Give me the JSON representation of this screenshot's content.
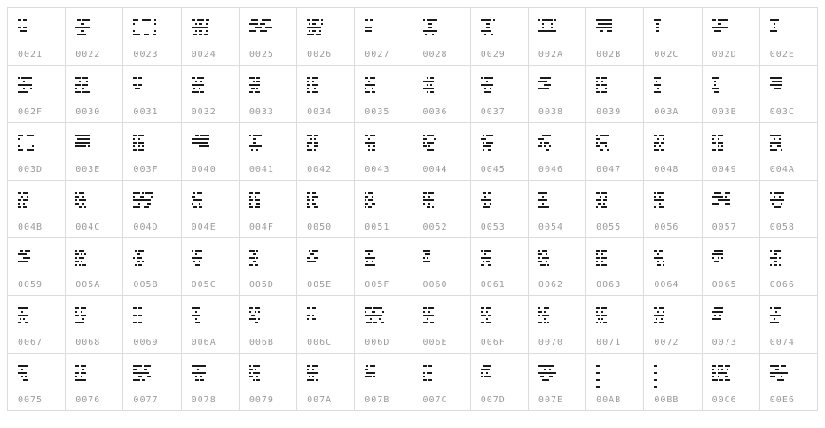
{
  "page": {
    "background": "#ffffff",
    "border_color": "#dcdcdc",
    "glyph_color": "#1b1b1b",
    "label_color": "#9a9a9a"
  },
  "grid": {
    "columns": 14,
    "rows": 7,
    "cells": [
      {
        "code": "0021",
        "bitmap": [
          "##.##",
          ".....",
          "##.##",
          ".####"
        ]
      },
      {
        "code": "0022",
        "bitmap": [
          ".##.####",
          "...##...",
          "########",
          "...##...",
          ".#####.."
        ]
      },
      {
        "code": "0023",
        "bitmap": [
          "###..#####..#",
          "#...........#",
          ".............",
          "#...........#",
          "####..###..##"
        ]
      },
      {
        "code": "0024",
        "bitmap": [
          "##.####.##",
          "..#.##..#.",
          "#########.",
          "..#.##..#.",
          ".##.##.##."
        ]
      },
      {
        "code": "0025",
        "bitmap": [
          ".####..#####.",
          "#####.###....",
          "...####..####",
          "####..####..."
        ]
      },
      {
        "code": "0026",
        "bitmap": [
          "##.####.#",
          ".#.##...#",
          "########.",
          ".#.##..#.",
          "####.###."
        ]
      },
      {
        "code": "0027",
        "bitmap": [
          "##.##",
          ".....",
          "####.",
          "####."
        ]
      },
      {
        "code": "0028",
        "bitmap": [
          "#.######",
          "...##...",
          "...##...",
          "########",
          ".#...#.."
        ]
      },
      {
        "code": "0029",
        "bitmap": [
          "######.#",
          "...##...",
          "...##...",
          "######..",
          "..#...#."
        ]
      },
      {
        "code": "002A",
        "bitmap": [
          "#.######.#",
          "..#....#..",
          "..#....#..",
          "##########"
        ]
      },
      {
        "code": "002B",
        "bitmap": [
          "#########",
          ".########",
          "#########",
          "..##..###"
        ]
      },
      {
        "code": "002C",
        "bitmap": [
          "####",
          ".##.",
          ".##.",
          ".##."
        ]
      },
      {
        "code": "002D",
        "bitmap": [
          "##.######",
          "...##....",
          "#########",
          ".####...."
        ]
      },
      {
        "code": "002E",
        "bitmap": [
          "#####",
          "..#..",
          "..#..",
          "####."
        ]
      },
      {
        "code": "002F",
        "bitmap": [
          "#.######",
          "...#....",
          "########",
          "...#...#",
          "######.."
        ]
      },
      {
        "code": "0030",
        "bitmap": [
          "###.###.",
          "..#...#.",
          "###.###.",
          "#...#...",
          "###.####"
        ]
      },
      {
        "code": "0031",
        "bitmap": [
          "##.##",
          ".....",
          "##.##",
          ".###."
        ]
      },
      {
        "code": "0032",
        "bitmap": [
          "##.####",
          "..#..#.",
          "#######",
          ".#..#..",
          "####.##"
        ]
      },
      {
        "code": "0033",
        "bitmap": [
          "###.##",
          "..#.##",
          "######",
          ".##.#.",
          "##.###"
        ]
      },
      {
        "code": "0034",
        "bitmap": [
          "##.###",
          "#..#..",
          "##.###",
          "#...#.",
          "##.###"
        ]
      },
      {
        "code": "0035",
        "bitmap": [
          "##.###",
          "..#...",
          "######",
          "#...#.",
          "###.##"
        ]
      },
      {
        "code": "0036",
        "bitmap": [
          "..#.##",
          "######",
          "..#.#.",
          "######",
          "..#.##"
        ]
      },
      {
        "code": "0037",
        "bitmap": [
          "#.#####",
          "...#...",
          "#######",
          "..#..#.",
          "..####."
        ]
      },
      {
        "code": "0038",
        "bitmap": [
          ".######",
          "#####..",
          "...####",
          "######."
        ]
      },
      {
        "code": "0039",
        "bitmap": [
          "##.###",
          "#..#..",
          "##.###",
          "#....#",
          "##.###"
        ]
      },
      {
        "code": "003A",
        "bitmap": [
          "####",
          ".#..",
          "####",
          "..#.",
          "####"
        ]
      },
      {
        "code": "003B",
        "bitmap": [
          "####",
          ".#..",
          ".#..",
          "####",
          ".###"
        ]
      },
      {
        "code": "003C",
        "bitmap": [
          "#######",
          ".######",
          "#######",
          "..####."
        ]
      },
      {
        "code": "003D",
        "bitmap": [
          "###..####",
          "#........",
          ".........",
          "#.......#",
          "###..####"
        ]
      },
      {
        "code": "003E",
        "bitmap": [
          "########",
          ".#######",
          "########",
          "######.#"
        ]
      },
      {
        "code": "003F",
        "bitmap": [
          "##.###",
          "#..#..",
          "##.###",
          "#..#.#",
          "##.###"
        ]
      },
      {
        "code": "0040",
        "bitmap": [
          "..##.#####",
          "##########",
          "#########.",
          "....######"
        ]
      },
      {
        "code": "0041",
        "bitmap": [
          "#.#####",
          "..##...",
          "..##...",
          "#######",
          ".#..#.."
        ]
      },
      {
        "code": "0042",
        "bitmap": [
          "###.##",
          "..#.#.",
          "###.##",
          "#...##",
          "###.#."
        ]
      },
      {
        "code": "0043",
        "bitmap": [
          "##.###",
          "..#...",
          "######",
          "..#..#",
          "..#.##"
        ]
      },
      {
        "code": "0044",
        "bitmap": [
          "#.####.",
          "##....#",
          "#.####.",
          "##.#...",
          "..####."
        ]
      },
      {
        "code": "0045",
        "bitmap": [
          ".#.####",
          "###....",
          ".#.####",
          ".#####.",
          ".#..##."
        ]
      },
      {
        "code": "0046",
        "bitmap": [
          "..#####",
          "###....",
          ".#.###.",
          "##.#..#",
          "....##."
        ]
      },
      {
        "code": "0047",
        "bitmap": [
          "#.#####",
          "##.....",
          "#.####.",
          "##...#.",
          "..##..#"
        ]
      },
      {
        "code": "0048",
        "bitmap": [
          "##.###.",
          "..#..#.",
          "###.##.",
          "#..#...",
          "###.##."
        ]
      },
      {
        "code": "0049",
        "bitmap": [
          "##.###",
          "#..#..",
          "##.###",
          "...#.#",
          "##.###"
        ]
      },
      {
        "code": "004A",
        "bitmap": [
          "######.",
          "..#..#.",
          "######.",
          "#...##.",
          "####..#"
        ]
      },
      {
        "code": "004B",
        "bitmap": [
          "##.###",
          "..#..#",
          "##.###",
          "#..#..",
          "##.##."
        ]
      },
      {
        "code": "004C",
        "bitmap": [
          "#.###.",
          "##..#.",
          "#.####",
          "##..#.",
          "..##.#"
        ]
      },
      {
        "code": "004D",
        "bitmap": [
          "####.#.####",
          "#...##....#",
          "##########.",
          "...#....##.",
          "####..###.."
        ]
      },
      {
        "code": "004E",
        "bitmap": [
          ".#.###",
          "##....",
          ".#####",
          "#...#.",
          ".##.##"
        ]
      },
      {
        "code": "004F",
        "bitmap": [
          "##.###",
          "#..#..",
          "##.###",
          "#...##",
          "##.###"
        ]
      },
      {
        "code": "0050",
        "bitmap": [
          "##.##.",
          "#..###",
          "##.#..",
          "#..##.",
          "##..##"
        ]
      },
      {
        "code": "0051",
        "bitmap": [
          "#.###.",
          "##..#.",
          "#.###.",
          "##..##",
          "#.##.."
        ]
      },
      {
        "code": "0052",
        "bitmap": [
          "##.###",
          "#..#..",
          "######",
          "#..#..",
          "..##.#"
        ]
      },
      {
        "code": "0053",
        "bitmap": [
          ".##.##",
          "..#...",
          "######",
          "..#..#",
          ".####."
        ]
      },
      {
        "code": "0054",
        "bitmap": [
          "#####.",
          "..#...",
          "#####.",
          "..#...",
          "######"
        ]
      },
      {
        "code": "0055",
        "bitmap": [
          "##.###",
          "..#..#",
          "###.##",
          ".##.#.",
          "#..###"
        ]
      },
      {
        "code": "0056",
        "bitmap": [
          "#.####",
          "#..#..",
          "######",
          "...#..",
          "#..###"
        ]
      },
      {
        "code": "0057",
        "bitmap": [
          ".####..###",
          "######.#..",
          "...#######",
          "####...###"
        ]
      },
      {
        "code": "0058",
        "bitmap": [
          "#.######",
          "..#..#..",
          "########",
          ".#....#.",
          "..####.."
        ]
      },
      {
        "code": "0059",
        "bitmap": [
          ".##.###",
          "#####..",
          "...####",
          "######."
        ]
      },
      {
        "code": "005A",
        "bitmap": [
          "#.###.",
          "##.#.#",
          "#.###.",
          "##.#..",
          "#.#.##"
        ]
      },
      {
        "code": "005B",
        "bitmap": [
          ".#.###",
          "..##..",
          "#.###.",
          "..##.#",
          ".#.##."
        ]
      },
      {
        "code": "005C",
        "bitmap": [
          "#.####",
          "..#...",
          "######",
          ".#..#.",
          "..###."
        ]
      },
      {
        "code": "005D",
        "bitmap": [
          "###.#",
          "..##.",
          "###.#",
          "..##.",
          "##.##"
        ]
      },
      {
        "code": "005E",
        "bitmap": [
          ".#.###",
          "..##..",
          "##..##",
          "#####."
        ]
      },
      {
        "code": "005F",
        "bitmap": [
          "#####.",
          "..#...",
          "######",
          ".#..#.",
          "######"
        ]
      },
      {
        "code": "0060",
        "bitmap": [
          "####",
          ".###",
          "#.#.",
          "####"
        ]
      },
      {
        "code": "0061",
        "bitmap": [
          "#.####",
          "..#...",
          "######",
          ".#.##.",
          "##..##"
        ]
      },
      {
        "code": "0062",
        "bitmap": [
          "#.###.",
          "##..#.",
          "#.####",
          "##..#.",
          ".###.#"
        ]
      },
      {
        "code": "0063",
        "bitmap": [
          "##.###",
          "#..#..",
          "##.###",
          "#..#..",
          "##.###"
        ]
      },
      {
        "code": "0064",
        "bitmap": [
          "##.##.",
          "..#...",
          "#####.",
          "..#..#",
          "..##.#"
        ]
      },
      {
        "code": "0065",
        "bitmap": [
          ".#####",
          "######",
          "#..#.#",
          ".###.."
        ]
      },
      {
        "code": "0066",
        "bitmap": [
          "#.####",
          "..##..",
          "####.#",
          "..##..",
          "#.##.#"
        ]
      },
      {
        "code": "0067",
        "bitmap": [
          "######",
          "..#...",
          "######",
          ".#.#..",
          "##..##"
        ]
      },
      {
        "code": "0068",
        "bitmap": [
          "##.###",
          "#..#..",
          "##.###",
          "....#.",
          "#####."
        ]
      },
      {
        "code": "0069",
        "bitmap": [
          "##.##",
          ".....",
          "##.##",
          ".....",
          "##.##"
        ]
      },
      {
        "code": "006A",
        "bitmap": [
          "#####",
          "..#..",
          "#####",
          "..#..",
          "..###"
        ]
      },
      {
        "code": "006B",
        "bitmap": [
          "##.###",
          "#..#.#",
          ".##...",
          "####.#",
          "...##."
        ]
      },
      {
        "code": "006C",
        "bitmap": [
          "##.##",
          ".....",
          "##.#.",
          "#..##"
        ]
      },
      {
        "code": "006D",
        "bitmap": [
          "####.#####.",
          "#...##....#",
          "##########.",
          "...#....#..",
          ".###.##..##"
        ]
      },
      {
        "code": "006E",
        "bitmap": [
          "##.###",
          "#..#..",
          "######",
          "..#...",
          "###.##"
        ]
      },
      {
        "code": "006F",
        "bitmap": [
          "##.###",
          "#..#..",
          "###.##",
          "...#..",
          "##.###"
        ]
      },
      {
        "code": "0070",
        "bitmap": [
          "#..###",
          "##.#..",
          "#.####",
          "...#..",
          "##.#.#"
        ]
      },
      {
        "code": "0071",
        "bitmap": [
          "##.###",
          "#..#..",
          "##.###",
          ".#.#..",
          "#.#.##"
        ]
      },
      {
        "code": "0072",
        "bitmap": [
          "##.###",
          "..#..#",
          "######",
          ".#..#.",
          "##.###"
        ]
      },
      {
        "code": "0073",
        "bitmap": [
          ".#####",
          "######",
          ".#..#.",
          "#####."
        ]
      },
      {
        "code": "0074",
        "bitmap": [
          "#.####",
          "...#..",
          "######",
          "..#...",
          "#####."
        ]
      },
      {
        "code": "0075",
        "bitmap": [
          "######",
          "..#...",
          "#####.",
          "..#.#.",
          "...###"
        ]
      },
      {
        "code": "0076",
        "bitmap": [
          "##.###",
          "....#.",
          "##.###",
          "#..#..",
          "######"
        ]
      },
      {
        "code": "0077",
        "bitmap": [
          "#####.####",
          "##....##..",
          "#########.",
          "...##...##",
          "####.##..."
        ]
      },
      {
        "code": "0078",
        "bitmap": [
          "########",
          "...#....",
          "########",
          "..#..#..",
          "..##.##."
        ]
      },
      {
        "code": "0079",
        "bitmap": [
          "#.####",
          "##.#..",
          "#.####",
          "##..#.",
          "..#.##"
        ]
      },
      {
        "code": "007A",
        "bitmap": [
          "##.###",
          "#..#..",
          "######",
          ".#.#..",
          "####.#"
        ]
      },
      {
        "code": "007B",
        "bitmap": [
          ".#.###",
          "##....",
          ".#####",
          "####.#"
        ]
      },
      {
        "code": "007C",
        "bitmap": [
          "##.##",
          ".....",
          "#.###",
          "#....",
          "##.##"
        ]
      },
      {
        "code": "007D",
        "bitmap": [
          ".#####",
          "#####.",
          "#..#..",
          "#.####"
        ]
      },
      {
        "code": "007E",
        "bitmap": [
          "#########.",
          "...#..#...",
          "##########",
          ".##...##..",
          "..####...."
        ]
      },
      {
        "code": "00AB",
        "bitmap": [
          "##",
          "..",
          "##",
          "..",
          "##",
          "..",
          "##"
        ]
      },
      {
        "code": "00BB",
        "bitmap": [
          "##",
          "..",
          "##",
          "..",
          "##",
          "..",
          "##"
        ]
      },
      {
        "code": "00C6",
        "bitmap": [
          "##.###.###",
          "#..#.#..#.",
          "##.#####..",
          "#..#...##.",
          "###.##.###"
        ]
      },
      {
        "code": "00E6",
        "bitmap": [
          "#####.###.",
          "...##.....",
          "##########",
          "###...#...",
          "....####.."
        ]
      }
    ]
  }
}
